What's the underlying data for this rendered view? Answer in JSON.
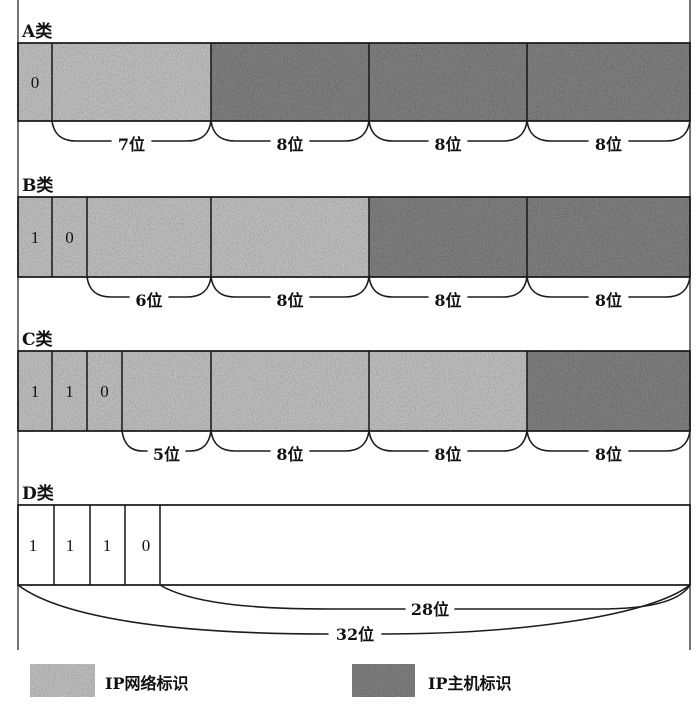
{
  "classes": {
    "a": {
      "label": "A类",
      "bits": [
        "0"
      ],
      "fields": [
        "7位",
        "8位",
        "8位",
        "8位"
      ]
    },
    "b": {
      "label": "B类",
      "bits": [
        "1",
        "0"
      ],
      "fields": [
        "6位",
        "8位",
        "8位",
        "8位"
      ]
    },
    "c": {
      "label": "C类",
      "bits": [
        "1",
        "1",
        "0"
      ],
      "fields": [
        "5位",
        "8位",
        "8位",
        "8位"
      ]
    },
    "d": {
      "label": "D类",
      "bits": [
        "1",
        "1",
        "1",
        "0"
      ],
      "fields": [
        "28位",
        "32位"
      ]
    }
  },
  "legend": {
    "network": {
      "label": "IP网络标识",
      "color": "#c7c7c7"
    },
    "host": {
      "label": "IP主机标识",
      "color": "#747474"
    }
  }
}
